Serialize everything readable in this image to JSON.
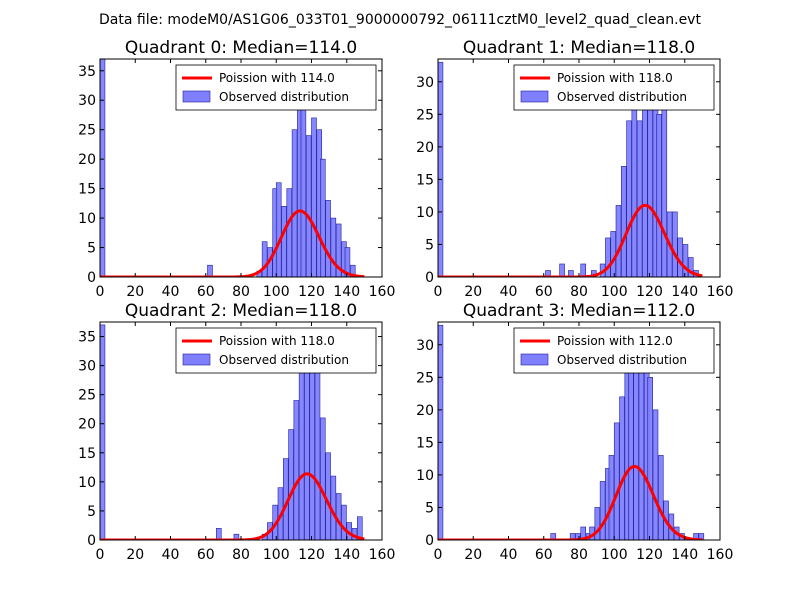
{
  "figure": {
    "suptitle": "Data file: modeM0/AS1G06_033T01_9000000792_06111cztM0_level2_quad_clean.evt"
  },
  "colors": {
    "bar_fill": "#8080ff",
    "bar_edge": "#20209f",
    "curve": "#ff0000"
  },
  "chart_data": [
    {
      "type": "bar",
      "title": "Quadrant 0: Median=114.0",
      "xlim": [
        0,
        160
      ],
      "ylim": [
        0,
        37
      ],
      "xticks": [
        "0",
        "20",
        "40",
        "60",
        "80",
        "100",
        "120",
        "140",
        "160"
      ],
      "yticks": [
        "0",
        "5",
        "10",
        "15",
        "20",
        "25",
        "30",
        "35"
      ],
      "legend_position": "upper right",
      "legend": [
        "Poission with 114.0",
        "Observed distribution"
      ],
      "median": 114.0,
      "total": 300,
      "bin_width": 2.8,
      "bins": [
        [
          0,
          37
        ],
        [
          61,
          2
        ],
        [
          89,
          1
        ],
        [
          92,
          6
        ],
        [
          95,
          5
        ],
        [
          98,
          15
        ],
        [
          100,
          16
        ],
        [
          103,
          12
        ],
        [
          106,
          15
        ],
        [
          109,
          25
        ],
        [
          112,
          29
        ],
        [
          114,
          35
        ],
        [
          117,
          24
        ],
        [
          120,
          27
        ],
        [
          123,
          25
        ],
        [
          125,
          20
        ],
        [
          128,
          13
        ],
        [
          131,
          10
        ],
        [
          134,
          9
        ],
        [
          137,
          6
        ],
        [
          139,
          5
        ],
        [
          142,
          2
        ]
      ]
    },
    {
      "type": "bar",
      "title": "Quadrant 1: Median=118.0",
      "xlim": [
        0,
        160
      ],
      "ylim": [
        0,
        33.5
      ],
      "xticks": [
        "0",
        "20",
        "40",
        "60",
        "80",
        "100",
        "120",
        "140",
        "160"
      ],
      "yticks": [
        "0",
        "5",
        "10",
        "15",
        "20",
        "25",
        "30"
      ],
      "legend_position": "upper right",
      "legend": [
        "Poission with 118.0",
        "Observed distribution"
      ],
      "median": 118.0,
      "total": 300,
      "bin_width": 2.8,
      "bins": [
        [
          0,
          33
        ],
        [
          61,
          1
        ],
        [
          69,
          2
        ],
        [
          74,
          1
        ],
        [
          81,
          2
        ],
        [
          87,
          1
        ],
        [
          92,
          2
        ],
        [
          95,
          6
        ],
        [
          98,
          7
        ],
        [
          101,
          11
        ],
        [
          104,
          17
        ],
        [
          107,
          24
        ],
        [
          110,
          26
        ],
        [
          113,
          24
        ],
        [
          116,
          28
        ],
        [
          119,
          30
        ],
        [
          122,
          29
        ],
        [
          124,
          25
        ],
        [
          127,
          27
        ],
        [
          130,
          10
        ],
        [
          133,
          10
        ],
        [
          136,
          6
        ],
        [
          139,
          5
        ],
        [
          142,
          3
        ],
        [
          145,
          1
        ]
      ]
    },
    {
      "type": "bar",
      "title": "Quadrant 2: Median=118.0",
      "xlim": [
        0,
        160
      ],
      "ylim": [
        0,
        37.5
      ],
      "xticks": [
        "0",
        "20",
        "40",
        "60",
        "80",
        "100",
        "120",
        "140",
        "160"
      ],
      "yticks": [
        "0",
        "5",
        "10",
        "15",
        "20",
        "25",
        "30",
        "35"
      ],
      "legend_position": "upper right",
      "legend": [
        "Poission with 118.0",
        "Observed distribution"
      ],
      "median": 118.0,
      "total": 310,
      "bin_width": 2.8,
      "bins": [
        [
          0,
          37
        ],
        [
          66,
          2
        ],
        [
          76,
          1
        ],
        [
          92,
          1
        ],
        [
          95,
          3
        ],
        [
          98,
          6
        ],
        [
          101,
          9
        ],
        [
          104,
          14
        ],
        [
          107,
          19
        ],
        [
          110,
          24
        ],
        [
          113,
          29
        ],
        [
          116,
          31
        ],
        [
          119,
          36
        ],
        [
          122,
          32
        ],
        [
          125,
          21
        ],
        [
          128,
          15
        ],
        [
          131,
          11
        ],
        [
          134,
          8
        ],
        [
          137,
          6
        ],
        [
          140,
          3
        ],
        [
          143,
          2
        ],
        [
          146,
          4
        ]
      ]
    },
    {
      "type": "bar",
      "title": "Quadrant 3: Median=112.0",
      "xlim": [
        0,
        160
      ],
      "ylim": [
        0,
        33.5
      ],
      "xticks": [
        "0",
        "20",
        "40",
        "60",
        "80",
        "100",
        "120",
        "140",
        "160"
      ],
      "yticks": [
        "0",
        "5",
        "10",
        "15",
        "20",
        "25",
        "30"
      ],
      "legend_position": "upper right",
      "legend": [
        "Poission with 112.0",
        "Observed distribution"
      ],
      "median": 112.0,
      "total": 300,
      "bin_width": 2.8,
      "bins": [
        [
          0,
          33
        ],
        [
          64,
          1
        ],
        [
          75,
          1
        ],
        [
          78,
          1
        ],
        [
          81,
          2
        ],
        [
          84,
          1
        ],
        [
          86,
          2
        ],
        [
          89,
          5
        ],
        [
          92,
          9
        ],
        [
          95,
          11
        ],
        [
          97,
          13
        ],
        [
          100,
          18
        ],
        [
          103,
          22
        ],
        [
          106,
          27
        ],
        [
          108,
          28
        ],
        [
          111,
          32
        ],
        [
          114,
          30
        ],
        [
          117,
          29
        ],
        [
          119,
          25
        ],
        [
          122,
          20
        ],
        [
          125,
          13
        ],
        [
          128,
          6
        ],
        [
          131,
          4
        ],
        [
          134,
          2
        ],
        [
          137,
          1
        ],
        [
          145,
          1
        ],
        [
          148,
          1
        ]
      ]
    }
  ]
}
